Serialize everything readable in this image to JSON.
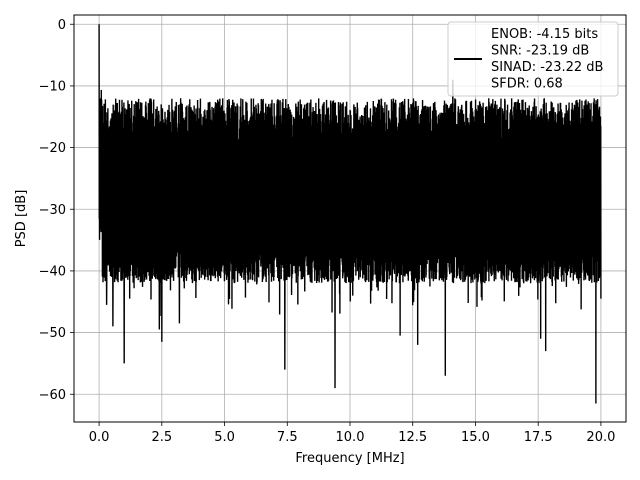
{
  "chart_data": {
    "type": "line",
    "xlabel": "Frequency [MHz]",
    "ylabel": "PSD [dB]",
    "xlim": [
      -1.0,
      21.0
    ],
    "ylim": [
      -64.5,
      1.5
    ],
    "xticks": [
      0.0,
      2.5,
      5.0,
      7.5,
      10.0,
      12.5,
      15.0,
      17.5,
      20.0
    ],
    "xtick_labels": [
      "0.0",
      "2.5",
      "5.0",
      "7.5",
      "10.0",
      "12.5",
      "15.0",
      "17.5",
      "20.0"
    ],
    "yticks": [
      0,
      -10,
      -20,
      -30,
      -40,
      -50,
      -60
    ],
    "ytick_labels": [
      "0",
      "−10",
      "−20",
      "−30",
      "−40",
      "−50",
      "−60"
    ],
    "grid": true,
    "legend_placement": "top-right",
    "line_color": "#000000",
    "series": [
      {
        "legend": [
          "ENOB: -4.15 bits",
          "SNR: -23.19 dB",
          "SINAD: -23.22 dB",
          "SFDR: 0.68"
        ],
        "x_start": 0.0,
        "x_end": 20.0,
        "peak": {
          "x": 0.0,
          "y": 0.0
        },
        "noise_floor_band": [
          -40,
          -12
        ],
        "notable_points": [
          {
            "x": 0.3,
            "y": -45.5
          },
          {
            "x": 0.55,
            "y": -49.0
          },
          {
            "x": 1.0,
            "y": -55.0
          },
          {
            "x": 2.4,
            "y": -49.5
          },
          {
            "x": 2.5,
            "y": -51.5
          },
          {
            "x": 3.2,
            "y": -48.5
          },
          {
            "x": 7.4,
            "y": -56.0
          },
          {
            "x": 9.4,
            "y": -59.0
          },
          {
            "x": 12.0,
            "y": -50.5
          },
          {
            "x": 12.7,
            "y": -52.0
          },
          {
            "x": 13.8,
            "y": -57.0
          },
          {
            "x": 14.1,
            "y": -9.0
          },
          {
            "x": 17.6,
            "y": -51.0
          },
          {
            "x": 17.8,
            "y": -53.0
          },
          {
            "x": 19.8,
            "y": -61.5
          },
          {
            "x": 20.0,
            "y": -44.5
          }
        ]
      }
    ]
  }
}
